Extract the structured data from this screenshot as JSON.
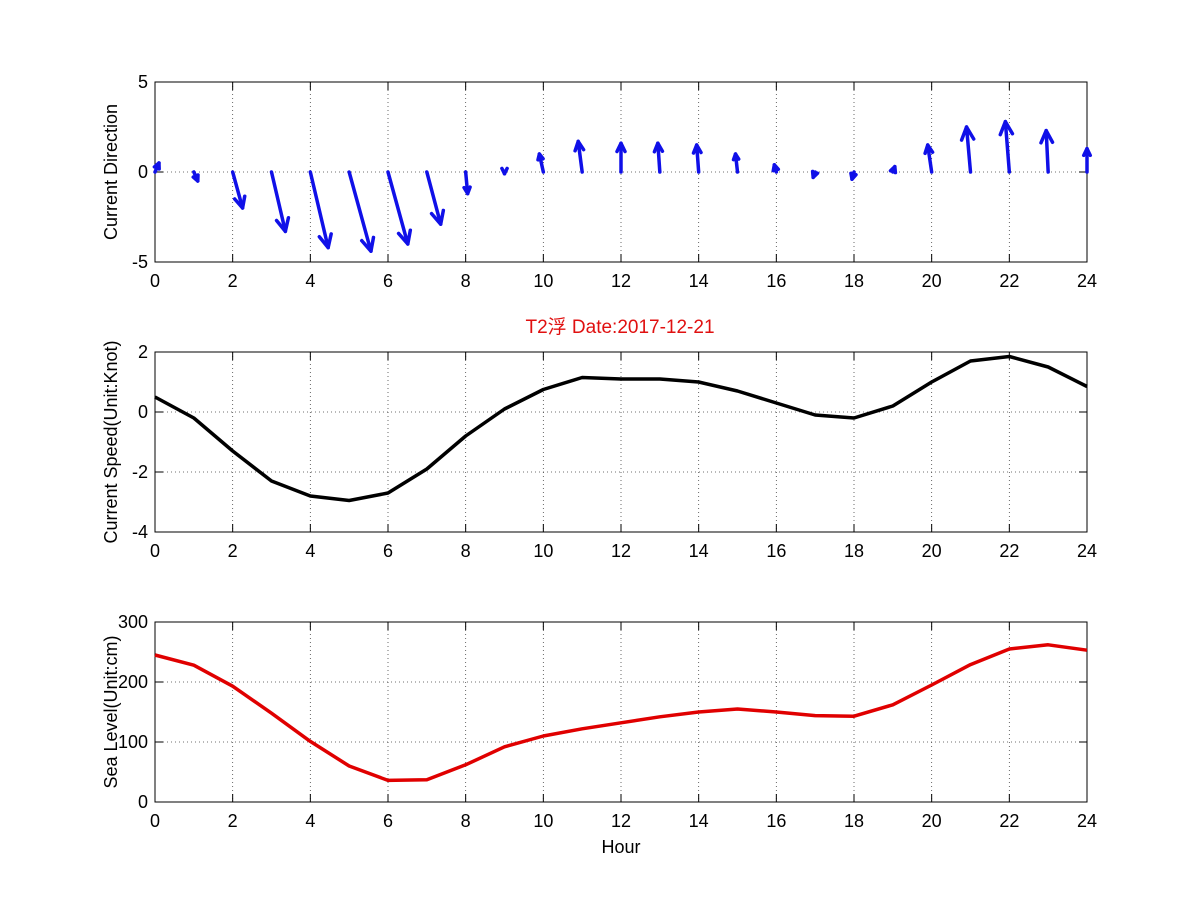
{
  "figure_title": "T2浮   Date:2017-12-21",
  "colors": {
    "title": "#e01010",
    "quiver": "#1010e8",
    "speed": "#000000",
    "sea_level": "#e00000"
  },
  "chart_data": [
    {
      "type": "quiver",
      "ylabel": "Current Direction",
      "xlim": [
        0,
        24
      ],
      "ylim": [
        -5,
        5
      ],
      "xticks": [
        0,
        2,
        4,
        6,
        8,
        10,
        12,
        14,
        16,
        18,
        20,
        22,
        24
      ],
      "yticks": [
        -5,
        0,
        5
      ],
      "grid": true,
      "x": [
        0,
        1,
        2,
        3,
        4,
        5,
        6,
        7,
        8,
        9,
        10,
        11,
        12,
        13,
        14,
        15,
        16,
        17,
        18,
        19,
        20,
        21,
        22,
        23,
        24
      ],
      "u": [
        0.1,
        0.1,
        0.25,
        0.35,
        0.45,
        0.55,
        0.5,
        0.35,
        0.05,
        0.0,
        -0.1,
        -0.1,
        0.0,
        -0.05,
        -0.05,
        -0.05,
        -0.05,
        -0.05,
        -0.05,
        0.05,
        -0.1,
        -0.1,
        -0.1,
        -0.05,
        0.0
      ],
      "v": [
        0.5,
        -0.5,
        -2.0,
        -3.3,
        -4.2,
        -4.4,
        -4.0,
        -2.9,
        -1.2,
        -0.1,
        1.0,
        1.7,
        1.6,
        1.6,
        1.5,
        1.0,
        0.4,
        -0.3,
        -0.4,
        0.3,
        1.5,
        2.5,
        2.8,
        2.3,
        1.3
      ]
    },
    {
      "type": "line",
      "ylabel": "Current Speed(Unit:Knot)",
      "xlim": [
        0,
        24
      ],
      "ylim": [
        -4,
        2
      ],
      "xticks": [
        0,
        2,
        4,
        6,
        8,
        10,
        12,
        14,
        16,
        18,
        20,
        22,
        24
      ],
      "yticks": [
        -4,
        -2,
        0,
        2
      ],
      "grid": true,
      "x": [
        0,
        1,
        2,
        3,
        4,
        5,
        6,
        7,
        8,
        9,
        10,
        11,
        12,
        13,
        14,
        15,
        16,
        17,
        18,
        19,
        20,
        21,
        22,
        23,
        24
      ],
      "y": [
        0.5,
        -0.2,
        -1.3,
        -2.3,
        -2.8,
        -2.95,
        -2.7,
        -1.9,
        -0.8,
        0.1,
        0.75,
        1.15,
        1.1,
        1.1,
        1.0,
        0.7,
        0.3,
        -0.1,
        -0.2,
        0.2,
        1.0,
        1.7,
        1.85,
        1.5,
        0.85
      ]
    },
    {
      "type": "line",
      "xlabel": "Hour",
      "ylabel": "Sea Level(Unit:cm)",
      "xlim": [
        0,
        24
      ],
      "ylim": [
        0,
        300
      ],
      "xticks": [
        0,
        2,
        4,
        6,
        8,
        10,
        12,
        14,
        16,
        18,
        20,
        22,
        24
      ],
      "yticks": [
        0,
        100,
        200,
        300
      ],
      "grid": true,
      "x": [
        0,
        1,
        2,
        3,
        4,
        5,
        6,
        7,
        8,
        9,
        10,
        11,
        12,
        13,
        14,
        15,
        16,
        17,
        18,
        19,
        20,
        21,
        22,
        23,
        24
      ],
      "y": [
        245,
        228,
        193,
        148,
        101,
        60,
        36,
        37,
        62,
        92,
        110,
        122,
        132,
        142,
        150,
        155,
        150,
        144,
        143,
        162,
        195,
        229,
        255,
        262,
        253
      ]
    }
  ]
}
